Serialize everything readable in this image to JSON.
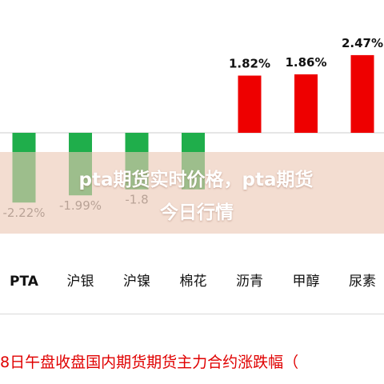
{
  "chart_data": {
    "type": "bar",
    "categories": [
      "PTA",
      "沪银",
      "沪镍",
      "棉花",
      "沥青",
      "甲醇",
      "尿素"
    ],
    "values": [
      -2.22,
      -1.99,
      -1.8,
      -1.8,
      1.82,
      1.86,
      2.47
    ],
    "data_labels": [
      "-2.22%",
      "-1.99%",
      "-1.8",
      null,
      "1.82%",
      "1.86%",
      "2.47%"
    ],
    "ylim": [
      -2.5,
      2.6
    ],
    "grid": false,
    "colors": {
      "positive": "#ee0000",
      "negative": "#1fae4b",
      "positive_label": "#111111",
      "negative_label": "#666666"
    }
  },
  "footer": {
    "title": "8日午盘收盘国内期货期货主力合约涨跌幅（",
    "color": "#e00000"
  },
  "overlay": {
    "line1": "pta期货实时价格，pta期货",
    "line2": "今日行情"
  }
}
